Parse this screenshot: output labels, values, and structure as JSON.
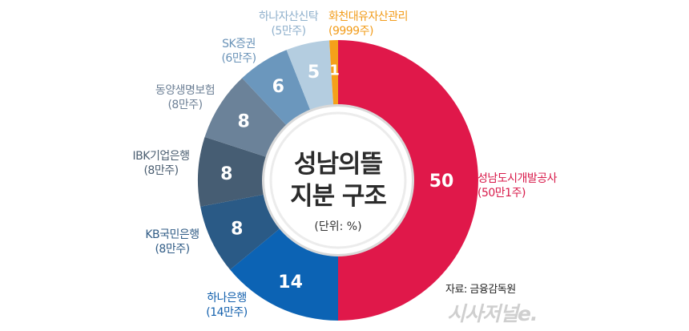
{
  "chart_data": {
    "type": "pie",
    "variant": "donut",
    "title": "성남의뜰 지분 구조",
    "unit_label": "(단위: %)",
    "categories": [
      "성남도시개발공사",
      "하나은행",
      "KB국민은행",
      "IBK기업은행",
      "동양생명보험",
      "SK증권",
      "하나자산신탁",
      "화천대유자산관리"
    ],
    "values": [
      50,
      14,
      8,
      8,
      8,
      6,
      5,
      1
    ],
    "shares": [
      "50만1주",
      "14만주",
      "8만주",
      "8만주",
      "8만주",
      "6만주",
      "5만주",
      "9999주"
    ],
    "colors": [
      "#e0184a",
      "#0c63b4",
      "#2a5a86",
      "#465d73",
      "#6b8299",
      "#6b97bd",
      "#b4cde0",
      "#f5a01a"
    ],
    "label_colors": [
      "#d81a4a",
      "#1360ad",
      "#2f5b85",
      "#4a5d70",
      "#6d8096",
      "#6a93b8",
      "#8fb0cc",
      "#f29c1a"
    ],
    "legend_position": "labels-around-slices",
    "source": "자료: 금융감독원"
  },
  "labels": [
    {
      "name": "성남도시개발공사",
      "sub": "(50만1주)",
      "value": "50"
    },
    {
      "name": "하나은행",
      "sub": "(14만주)",
      "value": "14"
    },
    {
      "name": "KB국민은행",
      "sub": "(8만주)",
      "value": "8"
    },
    {
      "name": "IBK기업은행",
      "sub": "(8만주)",
      "value": "8"
    },
    {
      "name": "동양생명보험",
      "sub": "(8만주)",
      "value": "8"
    },
    {
      "name": "SK증권",
      "sub": "(6만주)",
      "value": "6"
    },
    {
      "name": "하나자산신탁",
      "sub": "(5만주)",
      "value": "5"
    },
    {
      "name": "화천대유자산관리",
      "sub": "(9999주)",
      "value": "1"
    }
  ],
  "center": {
    "line1": "성남의뜰",
    "line2": "지분 구조",
    "unit": "(단위: %)"
  },
  "source": "자료: 금융감독원",
  "logo": "시사저널e."
}
